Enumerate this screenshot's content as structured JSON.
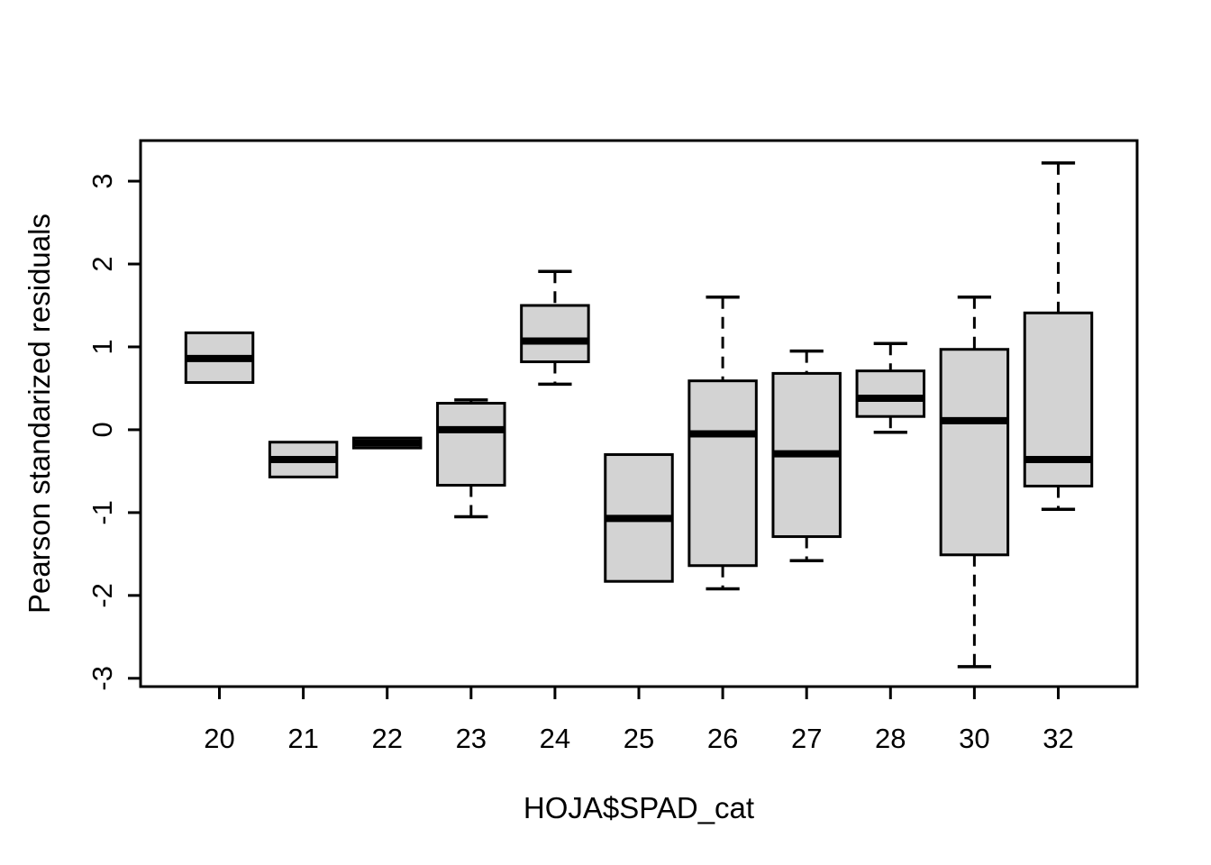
{
  "figure": {
    "background": "#ffffff"
  },
  "chart_data": {
    "type": "boxplot",
    "title": "",
    "xlabel": "HOJA$SPAD_cat",
    "ylabel": "Pearson standarized residuals",
    "categories": [
      "20",
      "21",
      "22",
      "23",
      "24",
      "25",
      "26",
      "27",
      "28",
      "30",
      "32"
    ],
    "y_ticks": [
      -3,
      -2,
      -1,
      0,
      1,
      2,
      3
    ],
    "y_tick_labels": [
      "-3",
      "-2",
      "-1",
      "0",
      "1",
      "2",
      "3"
    ],
    "ylim": [
      -3.1,
      3.49
    ],
    "grid": false,
    "legend": "none",
    "box_fill": "#d3d3d3",
    "line_color": "#000000",
    "whisker_line_style": "dashed",
    "boxes": [
      {
        "category": "20",
        "whisker_low": 0.57,
        "q1": 0.57,
        "median": 0.86,
        "q3": 1.17,
        "whisker_high": 1.17
      },
      {
        "category": "21",
        "whisker_low": -0.57,
        "q1": -0.57,
        "median": -0.36,
        "q3": -0.15,
        "whisker_high": -0.15
      },
      {
        "category": "22",
        "whisker_low": -0.22,
        "q1": -0.22,
        "median": -0.16,
        "q3": -0.1,
        "whisker_high": -0.1
      },
      {
        "category": "23",
        "whisker_low": -1.05,
        "q1": -0.67,
        "median": 0.0,
        "q3": 0.32,
        "whisker_high": 0.36
      },
      {
        "category": "24",
        "whisker_low": 0.55,
        "q1": 0.82,
        "median": 1.07,
        "q3": 1.5,
        "whisker_high": 1.91
      },
      {
        "category": "25",
        "whisker_low": -1.83,
        "q1": -1.83,
        "median": -1.07,
        "q3": -0.3,
        "whisker_high": -0.3
      },
      {
        "category": "26",
        "whisker_low": -1.92,
        "q1": -1.64,
        "median": -0.05,
        "q3": 0.59,
        "whisker_high": 1.6
      },
      {
        "category": "27",
        "whisker_low": -1.58,
        "q1": -1.29,
        "median": -0.29,
        "q3": 0.68,
        "whisker_high": 0.95
      },
      {
        "category": "28",
        "whisker_low": -0.03,
        "q1": 0.16,
        "median": 0.38,
        "q3": 0.71,
        "whisker_high": 1.04
      },
      {
        "category": "30",
        "whisker_low": -2.86,
        "q1": -1.51,
        "median": 0.11,
        "q3": 0.97,
        "whisker_high": 1.6
      },
      {
        "category": "32",
        "whisker_low": -0.96,
        "q1": -0.68,
        "median": -0.36,
        "q3": 1.41,
        "whisker_high": 3.22
      }
    ]
  }
}
